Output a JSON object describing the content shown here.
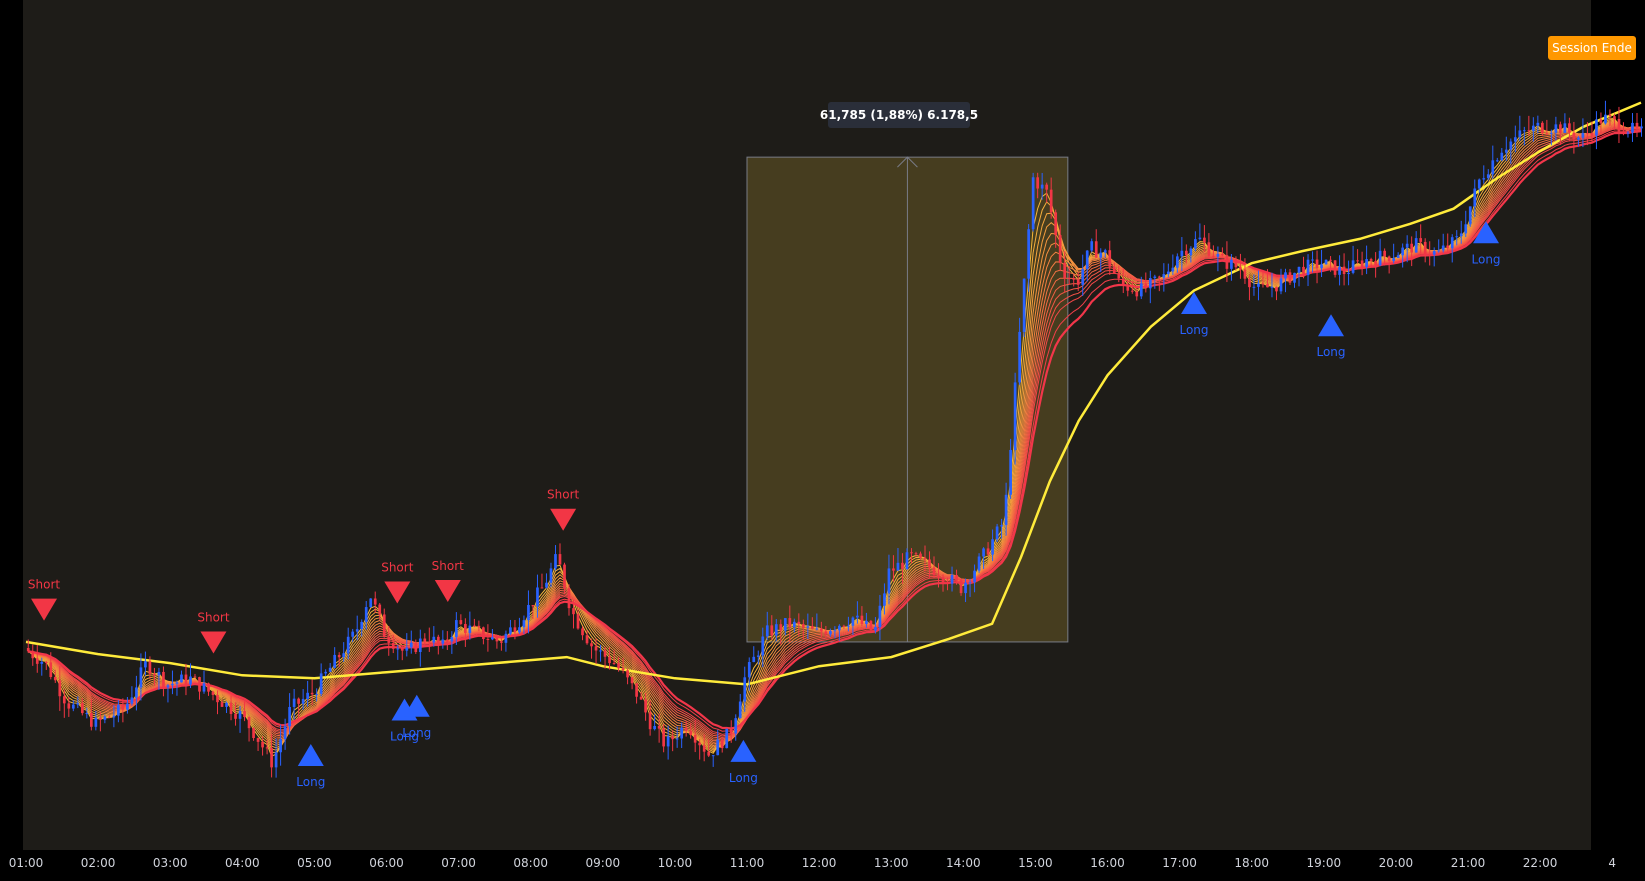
{
  "chart": {
    "background": "#1e1c18",
    "outer_background": "#000000",
    "bull_color": "#2962ff",
    "bear_color": "#f23645",
    "ma_color": "#ffeb3b",
    "ribbon_fast_color": "#f5b73b",
    "ribbon_slow_color": "#f2364a",
    "range_fill": "#4a4120",
    "range_border": "#787b86"
  },
  "session_end": {
    "label": "Session Ende",
    "color": "#ff9800"
  },
  "range_measure": {
    "label": "61,785 (1,88%) 6.178,5"
  },
  "chart_data": {
    "type": "candlestick",
    "x_unit": "time of day",
    "x_ticks": [
      "01:00",
      "02:00",
      "03:00",
      "04:00",
      "05:00",
      "06:00",
      "07:00",
      "08:00",
      "09:00",
      "10:00",
      "11:00",
      "12:00",
      "13:00",
      "14:00",
      "15:00",
      "16:00",
      "17:00",
      "18:00",
      "19:00",
      "20:00",
      "21:00",
      "22:00",
      "4"
    ],
    "y_range_pct": [
      -1.7,
      1.8
    ],
    "grid": false,
    "legend": "none",
    "price_path": [
      {
        "t": 0.0,
        "v": 0.0
      },
      {
        "t": 0.3,
        "v": -0.05
      },
      {
        "t": 0.6,
        "v": -0.18
      },
      {
        "t": 1.0,
        "v": -0.25
      },
      {
        "t": 1.4,
        "v": -0.2
      },
      {
        "t": 1.7,
        "v": -0.05
      },
      {
        "t": 2.0,
        "v": -0.12
      },
      {
        "t": 2.3,
        "v": -0.1
      },
      {
        "t": 2.6,
        "v": -0.15
      },
      {
        "t": 3.0,
        "v": -0.22
      },
      {
        "t": 3.2,
        "v": -0.28
      },
      {
        "t": 3.45,
        "v": -0.38
      },
      {
        "t": 3.7,
        "v": -0.2
      },
      {
        "t": 4.0,
        "v": -0.15
      },
      {
        "t": 4.3,
        "v": -0.05
      },
      {
        "t": 4.6,
        "v": 0.05
      },
      {
        "t": 4.8,
        "v": 0.18
      },
      {
        "t": 5.0,
        "v": 0.05
      },
      {
        "t": 5.3,
        "v": -0.02
      },
      {
        "t": 5.6,
        "v": 0.04
      },
      {
        "t": 5.8,
        "v": 0.0
      },
      {
        "t": 6.0,
        "v": 0.08
      },
      {
        "t": 6.3,
        "v": 0.05
      },
      {
        "t": 6.6,
        "v": 0.02
      },
      {
        "t": 6.9,
        "v": 0.1
      },
      {
        "t": 7.2,
        "v": 0.2
      },
      {
        "t": 7.4,
        "v": 0.3
      },
      {
        "t": 7.6,
        "v": 0.12
      },
      {
        "t": 7.9,
        "v": 0.0
      },
      {
        "t": 8.2,
        "v": -0.05
      },
      {
        "t": 8.5,
        "v": -0.15
      },
      {
        "t": 8.7,
        "v": -0.25
      },
      {
        "t": 8.9,
        "v": -0.32
      },
      {
        "t": 9.2,
        "v": -0.25
      },
      {
        "t": 9.5,
        "v": -0.35
      },
      {
        "t": 9.8,
        "v": -0.28
      },
      {
        "t": 10.0,
        "v": -0.1
      },
      {
        "t": 10.3,
        "v": 0.05
      },
      {
        "t": 10.6,
        "v": 0.08
      },
      {
        "t": 11.0,
        "v": 0.05
      },
      {
        "t": 11.5,
        "v": 0.1
      },
      {
        "t": 11.8,
        "v": 0.05
      },
      {
        "t": 12.0,
        "v": 0.25
      },
      {
        "t": 12.3,
        "v": 0.3
      },
      {
        "t": 12.7,
        "v": 0.25
      },
      {
        "t": 13.0,
        "v": 0.2
      },
      {
        "t": 13.3,
        "v": 0.3
      },
      {
        "t": 13.6,
        "v": 0.42
      },
      {
        "t": 13.8,
        "v": 1.0
      },
      {
        "t": 14.0,
        "v": 1.55
      },
      {
        "t": 14.2,
        "v": 1.5
      },
      {
        "t": 14.4,
        "v": 1.25
      },
      {
        "t": 14.6,
        "v": 1.2
      },
      {
        "t": 14.8,
        "v": 1.32
      },
      {
        "t": 15.0,
        "v": 1.3
      },
      {
        "t": 15.2,
        "v": 1.2
      },
      {
        "t": 15.5,
        "v": 1.18
      },
      {
        "t": 15.8,
        "v": 1.22
      },
      {
        "t": 16.0,
        "v": 1.3
      },
      {
        "t": 16.3,
        "v": 1.35
      },
      {
        "t": 16.6,
        "v": 1.28
      },
      {
        "t": 16.9,
        "v": 1.25
      },
      {
        "t": 17.1,
        "v": 1.18
      },
      {
        "t": 17.4,
        "v": 1.2
      },
      {
        "t": 17.7,
        "v": 1.25
      },
      {
        "t": 18.0,
        "v": 1.27
      },
      {
        "t": 18.3,
        "v": 1.24
      },
      {
        "t": 18.6,
        "v": 1.28
      },
      {
        "t": 19.0,
        "v": 1.3
      },
      {
        "t": 19.3,
        "v": 1.33
      },
      {
        "t": 19.6,
        "v": 1.3
      },
      {
        "t": 19.9,
        "v": 1.35
      },
      {
        "t": 20.2,
        "v": 1.55
      },
      {
        "t": 20.5,
        "v": 1.65
      },
      {
        "t": 20.8,
        "v": 1.7
      },
      {
        "t": 21.0,
        "v": 1.72
      },
      {
        "t": 21.3,
        "v": 1.72
      },
      {
        "t": 21.6,
        "v": 1.68
      },
      {
        "t": 21.9,
        "v": 1.75
      },
      {
        "t": 22.4,
        "v": 1.7
      }
    ],
    "slow_ma_path": [
      {
        "t": 0.0,
        "v": 0.02
      },
      {
        "t": 1.0,
        "v": -0.02
      },
      {
        "t": 2.0,
        "v": -0.05
      },
      {
        "t": 3.0,
        "v": -0.09
      },
      {
        "t": 4.0,
        "v": -0.1
      },
      {
        "t": 5.0,
        "v": -0.08
      },
      {
        "t": 6.0,
        "v": -0.06
      },
      {
        "t": 7.0,
        "v": -0.04
      },
      {
        "t": 7.5,
        "v": -0.03
      },
      {
        "t": 8.0,
        "v": -0.06
      },
      {
        "t": 9.0,
        "v": -0.1
      },
      {
        "t": 10.0,
        "v": -0.12
      },
      {
        "t": 11.0,
        "v": -0.06
      },
      {
        "t": 12.0,
        "v": -0.03
      },
      {
        "t": 12.8,
        "v": 0.03
      },
      {
        "t": 13.4,
        "v": 0.08
      },
      {
        "t": 13.8,
        "v": 0.3
      },
      {
        "t": 14.2,
        "v": 0.55
      },
      {
        "t": 14.6,
        "v": 0.75
      },
      {
        "t": 15.0,
        "v": 0.9
      },
      {
        "t": 15.6,
        "v": 1.06
      },
      {
        "t": 16.2,
        "v": 1.18
      },
      {
        "t": 17.0,
        "v": 1.27
      },
      {
        "t": 17.7,
        "v": 1.31
      },
      {
        "t": 18.5,
        "v": 1.35
      },
      {
        "t": 19.2,
        "v": 1.4
      },
      {
        "t": 19.8,
        "v": 1.45
      },
      {
        "t": 20.4,
        "v": 1.55
      },
      {
        "t": 21.0,
        "v": 1.64
      },
      {
        "t": 21.6,
        "v": 1.72
      },
      {
        "t": 22.4,
        "v": 1.8
      }
    ],
    "signals": [
      {
        "type": "Short",
        "t": 0.25
      },
      {
        "type": "Short",
        "t": 2.6
      },
      {
        "type": "Short",
        "t": 5.15
      },
      {
        "type": "Short",
        "t": 5.85
      },
      {
        "type": "Short",
        "t": 7.45
      },
      {
        "type": "Long",
        "t": 3.95
      },
      {
        "type": "Long",
        "t": 5.25
      },
      {
        "type": "Long",
        "t": 5.42
      },
      {
        "type": "Long",
        "t": 9.95
      },
      {
        "type": "Long",
        "t": 16.2
      },
      {
        "type": "Long",
        "t": 18.1
      },
      {
        "type": "Long",
        "t": 20.25
      }
    ],
    "range": {
      "t_start": 10.0,
      "t_end": 14.45
    }
  }
}
